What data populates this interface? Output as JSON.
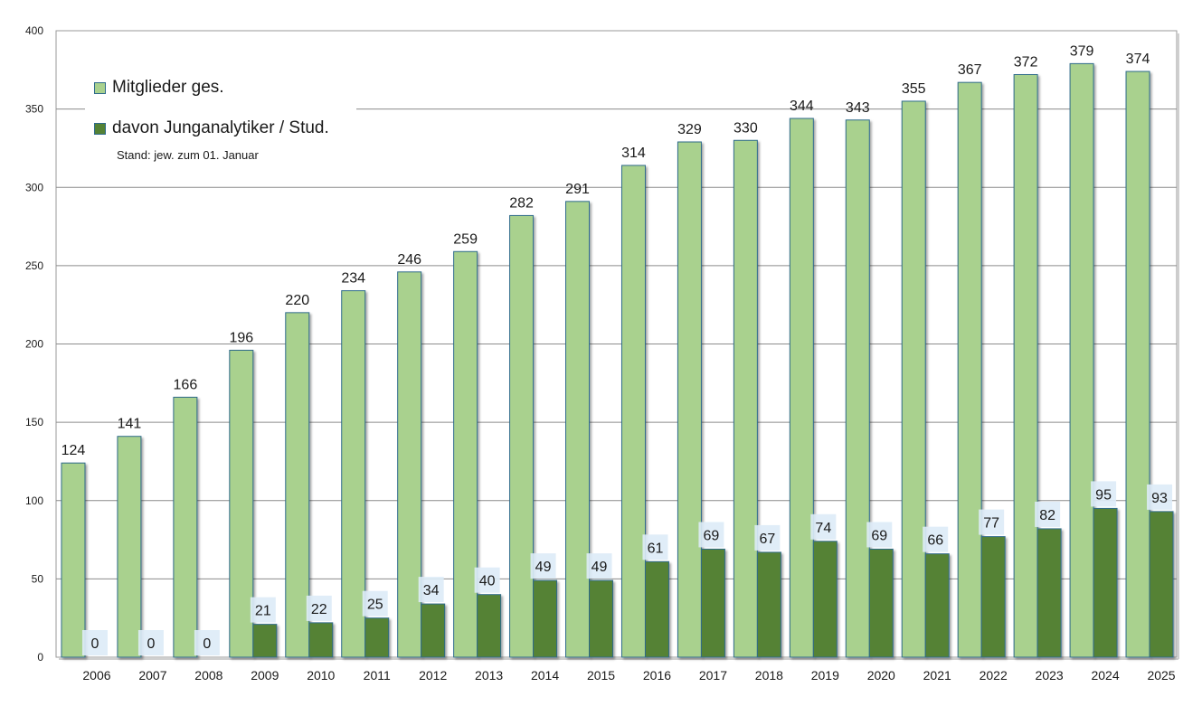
{
  "chart_data": {
    "type": "bar",
    "categories": [
      "2006",
      "2007",
      "2008",
      "2009",
      "2010",
      "2011",
      "2012",
      "2013",
      "2014",
      "2015",
      "2016",
      "2017",
      "2018",
      "2019",
      "2020",
      "2021",
      "2022",
      "2023",
      "2024",
      "2025"
    ],
    "series": [
      {
        "name": "Mitglieder ges.",
        "color": "#a9d18e",
        "values": [
          124,
          141,
          166,
          196,
          220,
          234,
          246,
          259,
          282,
          291,
          314,
          329,
          330,
          344,
          343,
          355,
          367,
          372,
          379,
          374
        ]
      },
      {
        "name": "davon Junganalytiker / Stud.",
        "color": "#548235",
        "values": [
          0,
          0,
          0,
          21,
          22,
          25,
          34,
          40,
          49,
          49,
          61,
          69,
          67,
          74,
          69,
          66,
          77,
          82,
          95,
          93
        ]
      }
    ],
    "note": "Stand: jew. zum 01. Januar",
    "ylim": [
      0,
      400
    ],
    "yticks": [
      0,
      50,
      100,
      150,
      200,
      250,
      300,
      350,
      400
    ],
    "grid": true,
    "legend_position": "top-left",
    "bar_outline_color": "#2f6b8a",
    "label_box_color": "#ddebf7"
  }
}
